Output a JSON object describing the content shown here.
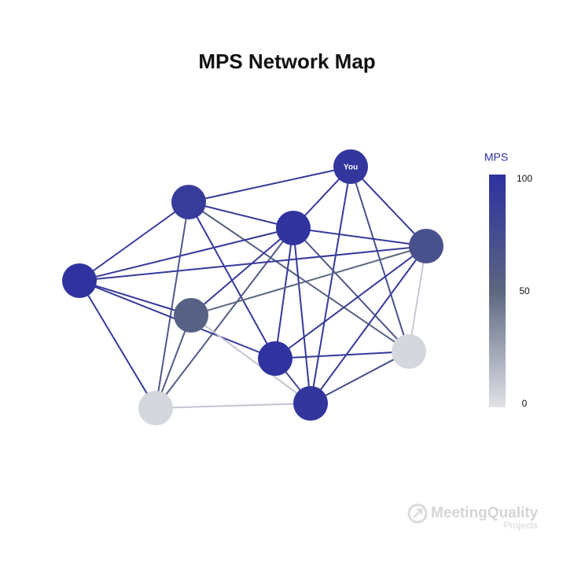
{
  "title": "MPS Network Map",
  "scale": {
    "label": "MPS",
    "lim": [
      0,
      100
    ],
    "ticks": [
      0,
      50,
      100
    ]
  },
  "nodes": [
    {
      "label": "You",
      "mps": 95
    },
    {
      "mps": 90
    },
    {
      "mps": 97
    },
    {
      "mps": 70
    },
    {
      "mps": 98
    },
    {
      "mps": 55
    },
    {
      "mps": 98
    },
    {
      "mps": 5
    },
    {
      "mps": 5
    },
    {
      "mps": 95
    }
  ],
  "edges": [
    {
      "from": 0,
      "to": 1,
      "mps": 90
    },
    {
      "from": 0,
      "to": 2,
      "mps": 92
    },
    {
      "from": 0,
      "to": 3,
      "mps": 90
    },
    {
      "from": 0,
      "to": 9,
      "mps": 92
    },
    {
      "from": 0,
      "to": 7,
      "mps": 70
    },
    {
      "from": 1,
      "to": 4,
      "mps": 92
    },
    {
      "from": 1,
      "to": 2,
      "mps": 92
    },
    {
      "from": 1,
      "to": 6,
      "mps": 92
    },
    {
      "from": 1,
      "to": 7,
      "mps": 55
    },
    {
      "from": 1,
      "to": 8,
      "mps": 62
    },
    {
      "from": 2,
      "to": 4,
      "mps": 92
    },
    {
      "from": 2,
      "to": 3,
      "mps": 92
    },
    {
      "from": 2,
      "to": 5,
      "mps": 90
    },
    {
      "from": 2,
      "to": 8,
      "mps": 60
    },
    {
      "from": 2,
      "to": 9,
      "mps": 92
    },
    {
      "from": 2,
      "to": 6,
      "mps": 92
    },
    {
      "from": 2,
      "to": 7,
      "mps": 65
    },
    {
      "from": 3,
      "to": 4,
      "mps": 92
    },
    {
      "from": 3,
      "to": 5,
      "mps": 50
    },
    {
      "from": 3,
      "to": 6,
      "mps": 92
    },
    {
      "from": 3,
      "to": 9,
      "mps": 92
    },
    {
      "from": 3,
      "to": 7,
      "mps": 10
    },
    {
      "from": 4,
      "to": 5,
      "mps": 92
    },
    {
      "from": 4,
      "to": 8,
      "mps": 92
    },
    {
      "from": 4,
      "to": 6,
      "mps": 92
    },
    {
      "from": 5,
      "to": 8,
      "mps": 60
    },
    {
      "from": 5,
      "to": 9,
      "mps": 12
    },
    {
      "from": 6,
      "to": 7,
      "mps": 92
    },
    {
      "from": 6,
      "to": 9,
      "mps": 75
    },
    {
      "from": 7,
      "to": 9,
      "mps": 70
    },
    {
      "from": 8,
      "to": 9,
      "mps": 12
    }
  ],
  "logo": {
    "name": "MeetingQuality",
    "sub": "Projects"
  }
}
